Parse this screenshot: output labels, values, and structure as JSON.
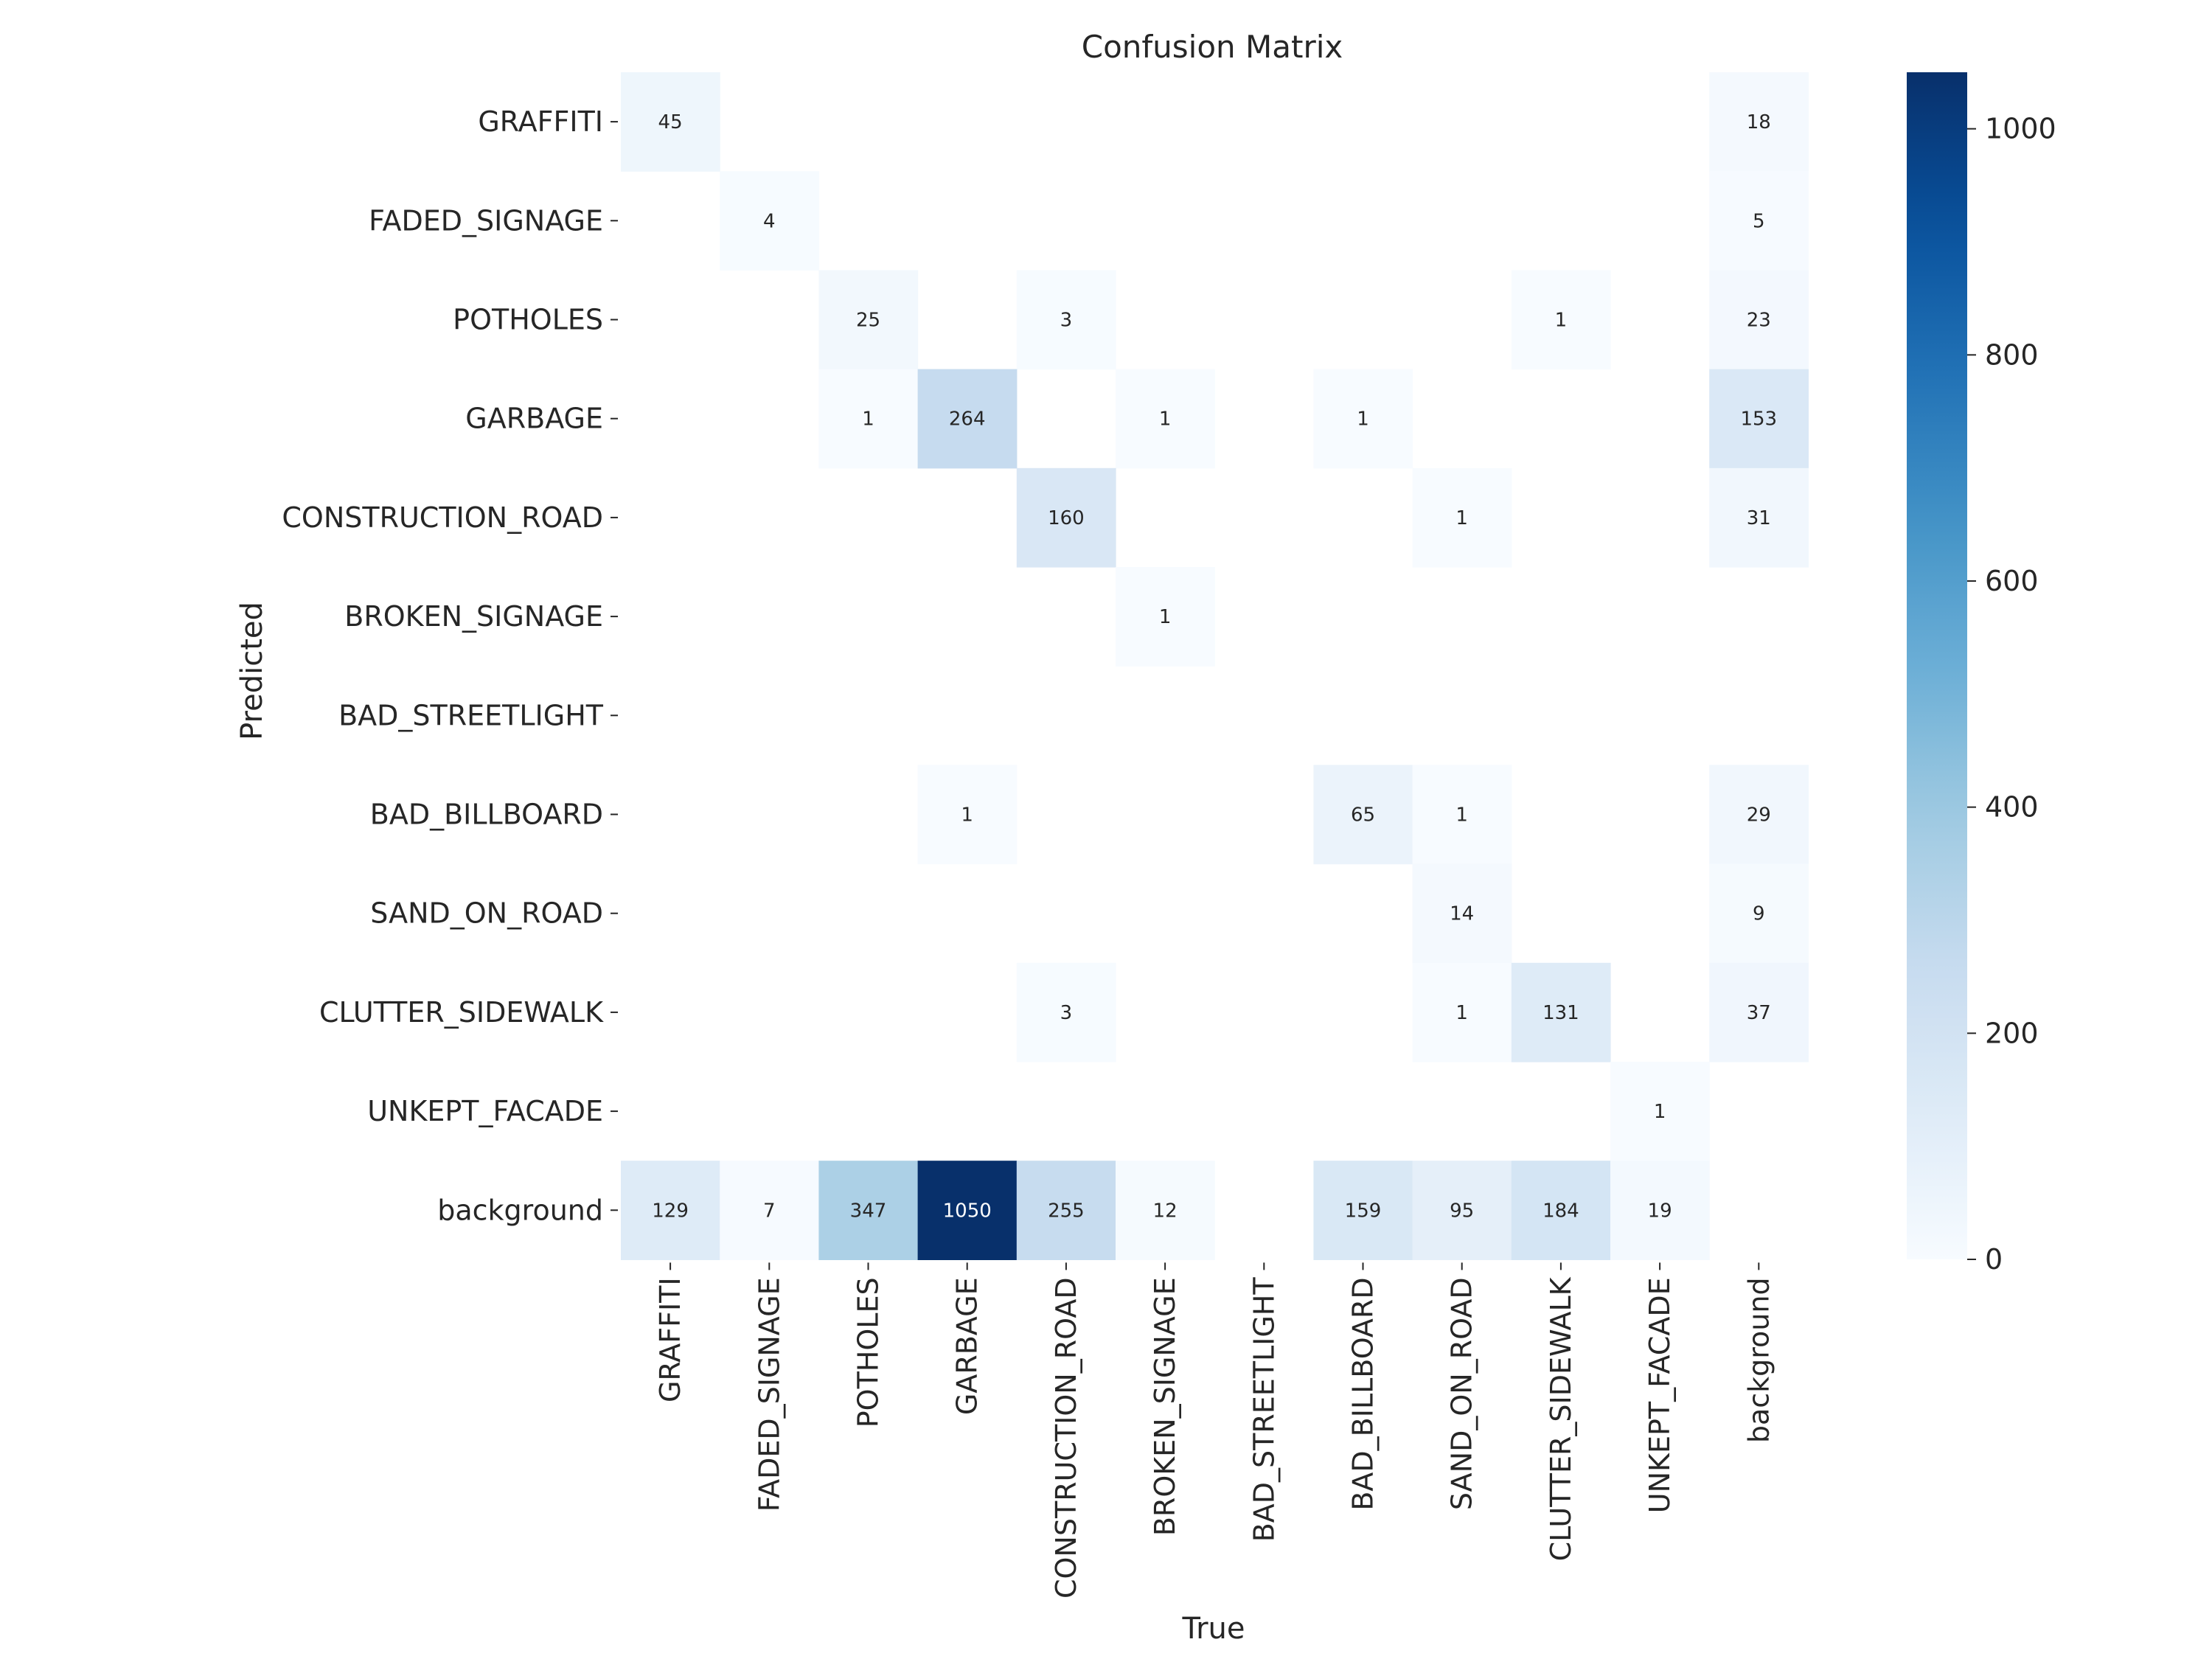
{
  "chart_data": {
    "type": "heatmap",
    "title": "Confusion Matrix",
    "xlabel": "True",
    "ylabel": "Predicted",
    "x_categories": [
      "GRAFFITI",
      "FADED_SIGNAGE",
      "POTHOLES",
      "GARBAGE",
      "CONSTRUCTION_ROAD",
      "BROKEN_SIGNAGE",
      "BAD_STREETLIGHT",
      "BAD_BILLBOARD",
      "SAND_ON_ROAD",
      "CLUTTER_SIDEWALK",
      "UNKEPT_FACADE",
      "background"
    ],
    "y_categories": [
      "GRAFFITI",
      "FADED_SIGNAGE",
      "POTHOLES",
      "GARBAGE",
      "CONSTRUCTION_ROAD",
      "BROKEN_SIGNAGE",
      "BAD_STREETLIGHT",
      "BAD_BILLBOARD",
      "SAND_ON_ROAD",
      "CLUTTER_SIDEWALK",
      "UNKEPT_FACADE",
      "background"
    ],
    "values": [
      [
        45,
        null,
        null,
        null,
        null,
        null,
        null,
        null,
        null,
        null,
        null,
        18
      ],
      [
        null,
        4,
        null,
        null,
        null,
        null,
        null,
        null,
        null,
        null,
        null,
        5
      ],
      [
        null,
        null,
        25,
        null,
        3,
        null,
        null,
        null,
        null,
        1,
        null,
        23
      ],
      [
        null,
        null,
        1,
        264,
        null,
        1,
        null,
        1,
        null,
        null,
        null,
        153
      ],
      [
        null,
        null,
        null,
        null,
        160,
        null,
        null,
        null,
        1,
        null,
        null,
        31
      ],
      [
        null,
        null,
        null,
        null,
        null,
        1,
        null,
        null,
        null,
        null,
        null,
        null
      ],
      [
        null,
        null,
        null,
        null,
        null,
        null,
        null,
        null,
        null,
        null,
        null,
        null
      ],
      [
        null,
        null,
        null,
        1,
        null,
        null,
        null,
        65,
        1,
        null,
        null,
        29
      ],
      [
        null,
        null,
        null,
        null,
        null,
        null,
        null,
        null,
        14,
        null,
        null,
        9
      ],
      [
        null,
        null,
        null,
        null,
        3,
        null,
        null,
        null,
        1,
        131,
        null,
        37
      ],
      [
        null,
        null,
        null,
        null,
        null,
        null,
        null,
        null,
        null,
        null,
        1,
        null
      ],
      [
        129,
        7,
        347,
        1050,
        255,
        12,
        null,
        159,
        95,
        184,
        19,
        null
      ]
    ],
    "colorbar": {
      "range": [
        0,
        1050
      ],
      "ticks": [
        0,
        200,
        400,
        600,
        800,
        1000
      ]
    },
    "colormap": "Blues",
    "colors": {
      "low": "#f7fbff",
      "high": "#08306b",
      "text_dark_cell": "#ffffff",
      "text_light_cell": "#262626"
    }
  }
}
